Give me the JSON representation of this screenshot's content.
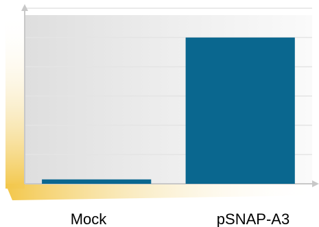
{
  "chart_data": {
    "type": "bar",
    "categories": [
      "Mock",
      "pSNAP-A3"
    ],
    "values": [
      0.03,
      1.0
    ],
    "ylim": [
      0,
      1.2
    ],
    "grid": true,
    "title": "",
    "xlabel": "",
    "ylabel": ""
  },
  "colors": {
    "bar": "#0a678f",
    "grid": "#e4e4e4",
    "axis": "#c8c8c8",
    "accent": "#f3c74a"
  }
}
